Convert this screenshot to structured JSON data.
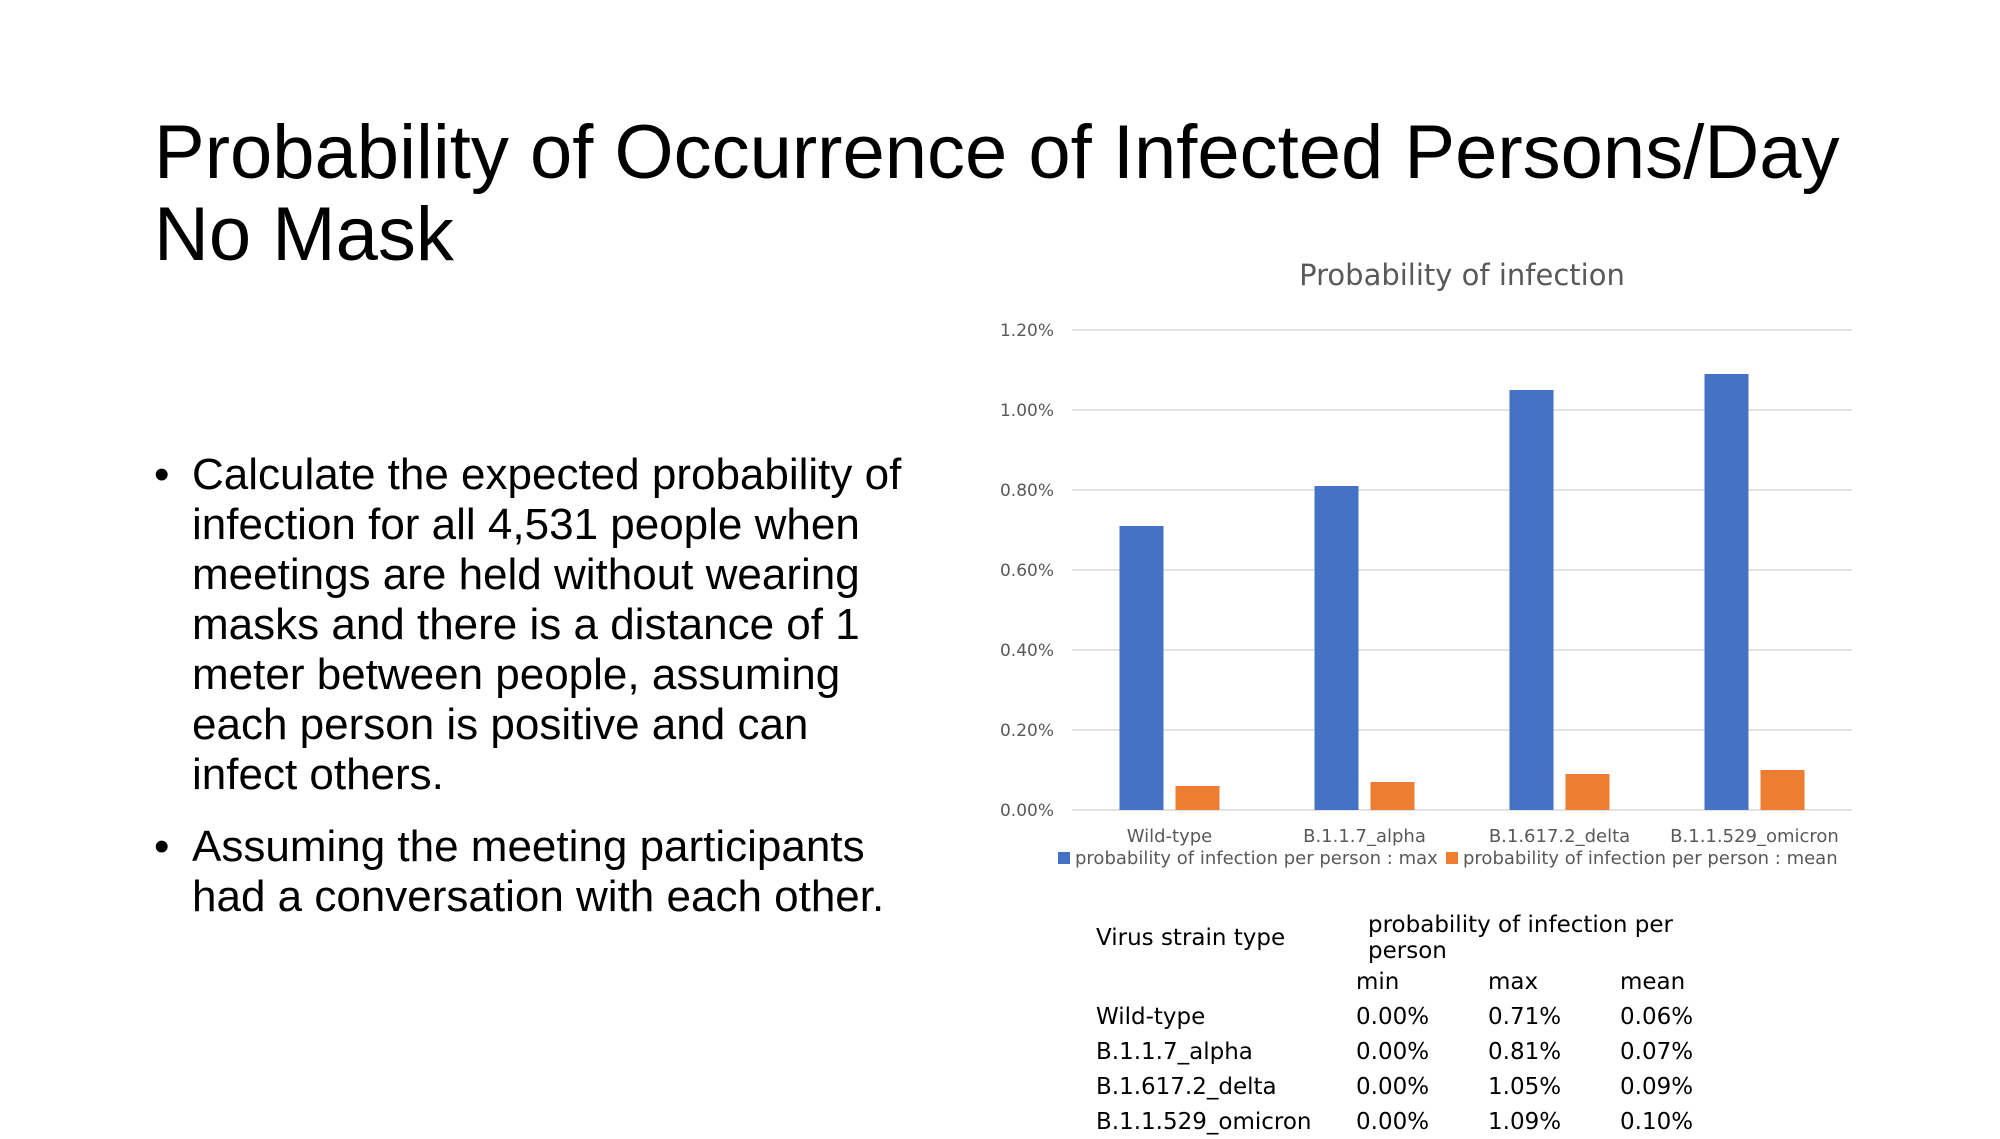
{
  "slide": {
    "title_line1": "Probability of Occurrence of Infected Persons/Day",
    "title_line2": "No Mask",
    "bullets": [
      "Calculate the expected probability of infection for all 4,531 people when meetings are held without wearing masks and there is a distance of 1 meter between people, assuming each person is positive and can infect others.",
      "Assuming the meeting participants had a conversation with each other."
    ]
  },
  "chart_data": {
    "type": "bar",
    "title": "Probability of infection",
    "categories": [
      "Wild-type",
      "B.1.1.7_alpha",
      "B.1.617.2_delta",
      "B.1.1.529_omicron"
    ],
    "series": [
      {
        "name": "probability of infection per person : max",
        "values": [
          0.71,
          0.81,
          1.05,
          1.09
        ],
        "color": "#4472C4"
      },
      {
        "name": "probability of infection per person : mean",
        "values": [
          0.06,
          0.07,
          0.09,
          0.1
        ],
        "color": "#ED7D31"
      }
    ],
    "ylim": [
      0,
      1.2
    ],
    "yticks": [
      0,
      0.2,
      0.4,
      0.6,
      0.8,
      1.0,
      1.2
    ],
    "ytick_labels": [
      "0.00%",
      "0.20%",
      "0.40%",
      "0.60%",
      "0.80%",
      "1.00%",
      "1.20%"
    ],
    "grid": true,
    "legend": "bottom",
    "gridline_color": "#D9D9D9",
    "text_color": "#595959"
  },
  "table": {
    "header_col0": "Virus strain type",
    "header_group": "probability of infection per person",
    "subheaders": [
      "min",
      "max",
      "mean"
    ],
    "rows": [
      {
        "strain": "Wild-type",
        "min": "0.00%",
        "max": "0.71%",
        "mean": "0.06%"
      },
      {
        "strain": "B.1.1.7_alpha",
        "min": "0.00%",
        "max": "0.81%",
        "mean": "0.07%"
      },
      {
        "strain": "B.1.617.2_delta",
        "min": "0.00%",
        "max": "1.05%",
        "mean": "0.09%"
      },
      {
        "strain": "B.1.1.529_omicron",
        "min": "0.00%",
        "max": "1.09%",
        "mean": "0.10%"
      }
    ]
  }
}
